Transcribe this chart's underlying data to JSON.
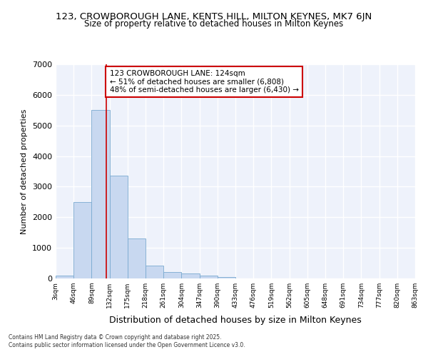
{
  "title1": "123, CROWBOROUGH LANE, KENTS HILL, MILTON KEYNES, MK7 6JN",
  "title2": "Size of property relative to detached houses in Milton Keynes",
  "xlabel": "Distribution of detached houses by size in Milton Keynes",
  "ylabel": "Number of detached properties",
  "bar_color": "#c8d8f0",
  "bar_edge_color": "#7aaad0",
  "background_color": "#ffffff",
  "plot_bg_color": "#eef2fb",
  "grid_color": "#ffffff",
  "bin_edges": [
    3,
    46,
    89,
    132,
    175,
    218,
    261,
    304,
    347,
    390,
    433,
    476,
    519,
    562,
    605,
    648,
    691,
    734,
    777,
    820,
    863
  ],
  "bar_heights": [
    90,
    2500,
    5500,
    3350,
    1300,
    430,
    210,
    170,
    90,
    40,
    5,
    0,
    0,
    0,
    0,
    0,
    0,
    0,
    0,
    0
  ],
  "property_size": 124,
  "annotation_title": "123 CROWBOROUGH LANE: 124sqm",
  "annotation_line2": "← 51% of detached houses are smaller (6,808)",
  "annotation_line3": "48% of semi-detached houses are larger (6,430) →",
  "red_line_color": "#cc0000",
  "ylim": [
    0,
    7000
  ],
  "yticks": [
    0,
    1000,
    2000,
    3000,
    4000,
    5000,
    6000,
    7000
  ],
  "footer_line1": "Contains HM Land Registry data © Crown copyright and database right 2025.",
  "footer_line2": "Contains public sector information licensed under the Open Government Licence v3.0."
}
